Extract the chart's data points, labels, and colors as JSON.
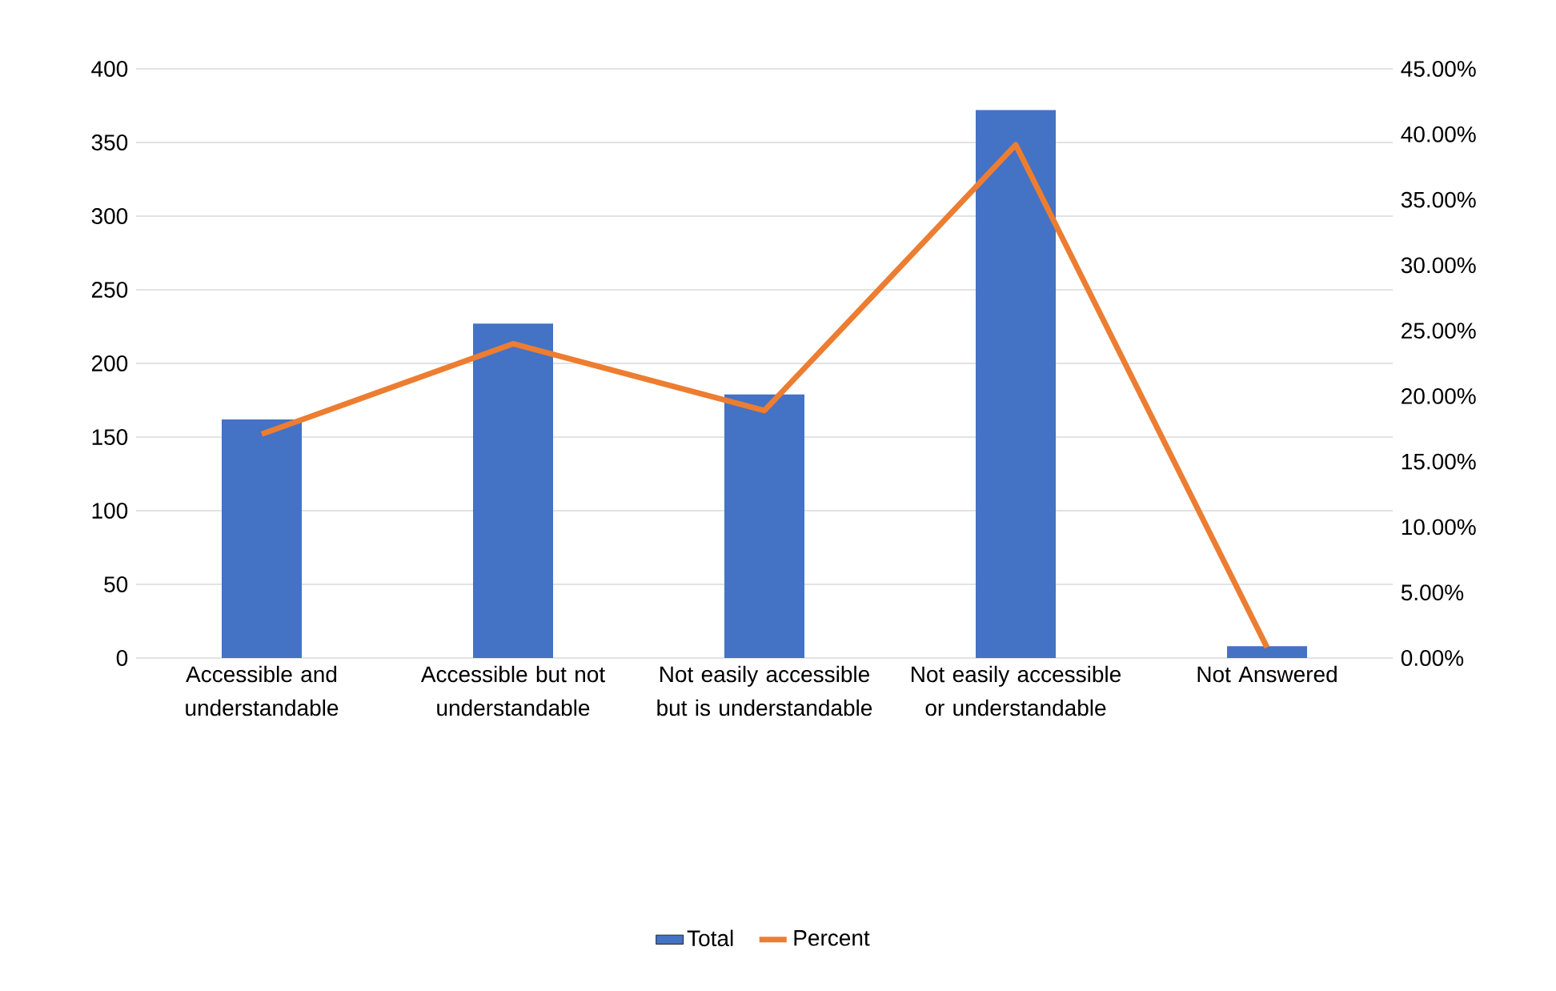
{
  "chart_data": {
    "type": "bar",
    "categories": [
      "Accessible and understandable",
      "Accessible but not understandable",
      "Not easily accessible but is understandable",
      "Not easily accessible or understandable",
      "Not Answered"
    ],
    "series": [
      {
        "name": "Total",
        "color": "#4472c4",
        "values": [
          162,
          227,
          179,
          372,
          8
        ]
      },
      {
        "name": "Percent",
        "type": "line",
        "axis": "y2",
        "color": "#ed7d31",
        "values": [
          17.1,
          24.0,
          18.9,
          39.2,
          0.8
        ]
      }
    ],
    "ylim": [
      0,
      400
    ],
    "yticks": [
      0,
      50,
      100,
      150,
      200,
      250,
      300,
      350,
      400
    ],
    "y2lim": [
      0,
      45
    ],
    "y2ticks": [
      {
        "value": 0,
        "label": "0.00%"
      },
      {
        "value": 5,
        "label": "5.00%"
      },
      {
        "value": 10,
        "label": "10.00%"
      },
      {
        "value": 15,
        "label": "15.00%"
      },
      {
        "value": 20,
        "label": "20.00%"
      },
      {
        "value": 25,
        "label": "25.00%"
      },
      {
        "value": 30,
        "label": "30.00%"
      },
      {
        "value": 35,
        "label": "35.00%"
      },
      {
        "value": 40,
        "label": "40.00%"
      },
      {
        "value": 45,
        "label": "45.00%"
      }
    ],
    "grid": "y",
    "legend": "bottom"
  }
}
